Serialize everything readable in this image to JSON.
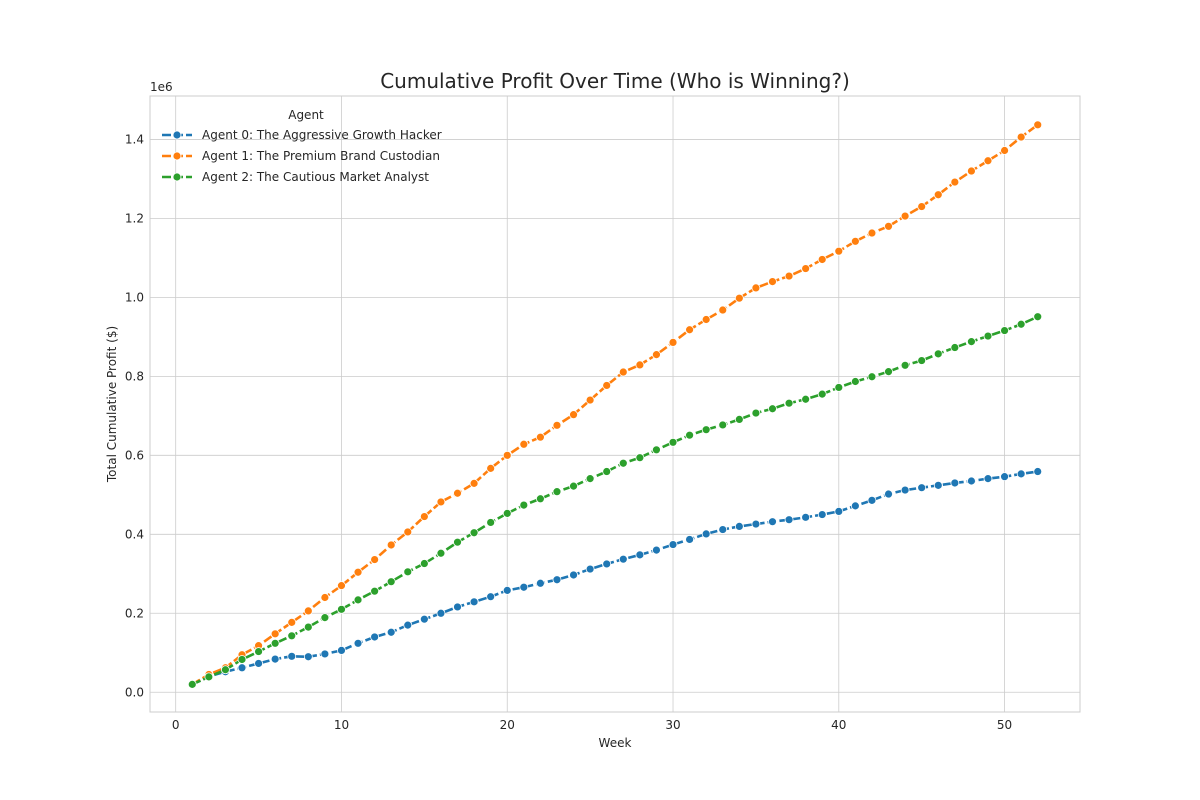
{
  "chart_data": {
    "type": "line",
    "title": "Cumulative Profit Over Time (Who is Winning?)",
    "xlabel": "Week",
    "ylabel": "Total Cumulative Profit ($)",
    "y_offset_label": "1e6",
    "xlim": [
      -1.55,
      54.55
    ],
    "ylim": [
      -0.05,
      1.51
    ],
    "x_ticks": [
      0,
      10,
      20,
      30,
      40,
      50
    ],
    "x_tick_labels": [
      "0",
      "10",
      "20",
      "30",
      "40",
      "50"
    ],
    "y_ticks": [
      0.0,
      0.2,
      0.4,
      0.6,
      0.8,
      1.0,
      1.2,
      1.4
    ],
    "y_tick_labels": [
      "0.0",
      "0.2",
      "0.4",
      "0.6",
      "0.8",
      "1.0",
      "1.2",
      "1.4"
    ],
    "grid": true,
    "legend": {
      "title": "Agent",
      "placement": "top-left"
    },
    "x": [
      1,
      2,
      3,
      4,
      5,
      6,
      7,
      8,
      9,
      10,
      11,
      12,
      13,
      14,
      15,
      16,
      17,
      18,
      19,
      20,
      21,
      22,
      23,
      24,
      25,
      26,
      27,
      28,
      29,
      30,
      31,
      32,
      33,
      34,
      35,
      36,
      37,
      38,
      39,
      40,
      41,
      42,
      43,
      44,
      45,
      46,
      47,
      48,
      49,
      50,
      51,
      52
    ],
    "series": [
      {
        "name": "Agent 0: The Aggressive Growth Hacker",
        "color": "#1f77b4",
        "values": [
          0.02,
          0.04,
          0.052,
          0.062,
          0.073,
          0.084,
          0.091,
          0.09,
          0.097,
          0.106,
          0.124,
          0.14,
          0.152,
          0.17,
          0.185,
          0.2,
          0.216,
          0.229,
          0.242,
          0.258,
          0.266,
          0.276,
          0.285,
          0.297,
          0.312,
          0.325,
          0.337,
          0.348,
          0.36,
          0.374,
          0.387,
          0.401,
          0.412,
          0.42,
          0.426,
          0.432,
          0.437,
          0.443,
          0.45,
          0.458,
          0.472,
          0.486,
          0.502,
          0.512,
          0.518,
          0.524,
          0.53,
          0.535,
          0.541,
          0.546,
          0.553,
          0.559
        ]
      },
      {
        "name": "Agent 1: The Premium Brand Custodian",
        "color": "#ff7f0e",
        "values": [
          0.02,
          0.045,
          0.062,
          0.095,
          0.118,
          0.148,
          0.177,
          0.206,
          0.24,
          0.27,
          0.304,
          0.336,
          0.373,
          0.406,
          0.445,
          0.482,
          0.504,
          0.529,
          0.567,
          0.6,
          0.628,
          0.646,
          0.676,
          0.703,
          0.74,
          0.777,
          0.811,
          0.829,
          0.855,
          0.886,
          0.918,
          0.944,
          0.968,
          0.998,
          1.024,
          1.04,
          1.054,
          1.073,
          1.096,
          1.117,
          1.142,
          1.163,
          1.18,
          1.206,
          1.23,
          1.26,
          1.292,
          1.32,
          1.346,
          1.372,
          1.406,
          1.437
        ]
      },
      {
        "name": "Agent 2: The Cautious Market Analyst",
        "color": "#2ca02c",
        "values": [
          0.02,
          0.039,
          0.057,
          0.083,
          0.103,
          0.124,
          0.143,
          0.165,
          0.189,
          0.21,
          0.234,
          0.256,
          0.28,
          0.305,
          0.326,
          0.352,
          0.38,
          0.404,
          0.43,
          0.453,
          0.474,
          0.49,
          0.508,
          0.522,
          0.541,
          0.559,
          0.58,
          0.594,
          0.614,
          0.633,
          0.651,
          0.665,
          0.677,
          0.691,
          0.707,
          0.718,
          0.732,
          0.742,
          0.755,
          0.772,
          0.787,
          0.799,
          0.812,
          0.828,
          0.84,
          0.857,
          0.873,
          0.888,
          0.902,
          0.916,
          0.932,
          0.951
        ]
      }
    ]
  }
}
